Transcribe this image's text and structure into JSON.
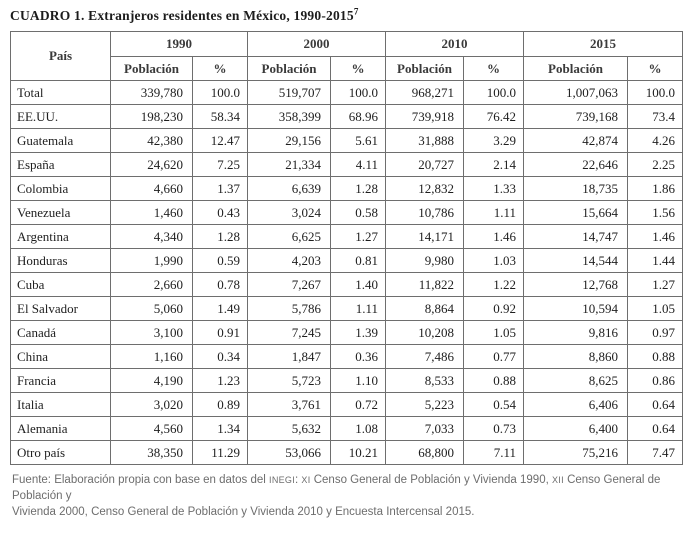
{
  "title": {
    "label": "CUADRO 1.",
    "text": " Extranjeros residentes en México, 1990-2015",
    "footnote_ref": "7"
  },
  "table": {
    "country_header": "País",
    "year_groups": [
      {
        "year": "1990"
      },
      {
        "year": "2000"
      },
      {
        "year": "2010"
      },
      {
        "year": "2015"
      }
    ],
    "sub_headers": {
      "population": "Población",
      "percent": "%"
    },
    "rows": [
      {
        "country": "Total",
        "values": [
          "339,780",
          "100.0",
          "519,707",
          "100.0",
          "968,271",
          "100.0",
          "1,007,063",
          "100.0"
        ]
      },
      {
        "country": "EE.UU.",
        "values": [
          "198,230",
          "58.34",
          "358,399",
          "68.96",
          "739,918",
          "76.42",
          "739,168",
          "73.4"
        ]
      },
      {
        "country": "Guatemala",
        "values": [
          "42,380",
          "12.47",
          "29,156",
          "5.61",
          "31,888",
          "3.29",
          "42,874",
          "4.26"
        ]
      },
      {
        "country": "España",
        "values": [
          "24,620",
          "7.25",
          "21,334",
          "4.11",
          "20,727",
          "2.14",
          "22,646",
          "2.25"
        ]
      },
      {
        "country": "Colombia",
        "values": [
          "4,660",
          "1.37",
          "6,639",
          "1.28",
          "12,832",
          "1.33",
          "18,735",
          "1.86"
        ]
      },
      {
        "country": "Venezuela",
        "values": [
          "1,460",
          "0.43",
          "3,024",
          "0.58",
          "10,786",
          "1.11",
          "15,664",
          "1.56"
        ]
      },
      {
        "country": "Argentina",
        "values": [
          "4,340",
          "1.28",
          "6,625",
          "1.27",
          "14,171",
          "1.46",
          "14,747",
          "1.46"
        ]
      },
      {
        "country": "Honduras",
        "values": [
          "1,990",
          "0.59",
          "4,203",
          "0.81",
          "9,980",
          "1.03",
          "14,544",
          "1.44"
        ]
      },
      {
        "country": "Cuba",
        "values": [
          "2,660",
          "0.78",
          "7,267",
          "1.40",
          "11,822",
          "1.22",
          "12,768",
          "1.27"
        ]
      },
      {
        "country": "El Salvador",
        "values": [
          "5,060",
          "1.49",
          "5,786",
          "1.11",
          "8,864",
          "0.92",
          "10,594",
          "1.05"
        ]
      },
      {
        "country": "Canadá",
        "values": [
          "3,100",
          "0.91",
          "7,245",
          "1.39",
          "10,208",
          "1.05",
          "9,816",
          "0.97"
        ]
      },
      {
        "country": "China",
        "values": [
          "1,160",
          "0.34",
          "1,847",
          "0.36",
          "7,486",
          "0.77",
          "8,860",
          "0.88"
        ]
      },
      {
        "country": "Francia",
        "values": [
          "4,190",
          "1.23",
          "5,723",
          "1.10",
          "8,533",
          "0.88",
          "8,625",
          "0.86"
        ]
      },
      {
        "country": "Italia",
        "values": [
          "3,020",
          "0.89",
          "3,761",
          "0.72",
          "5,223",
          "0.54",
          "6,406",
          "0.64"
        ]
      },
      {
        "country": "Alemania",
        "values": [
          "4,560",
          "1.34",
          "5,632",
          "1.08",
          "7,033",
          "0.73",
          "6,400",
          "0.64"
        ]
      },
      {
        "country": "Otro país",
        "values": [
          "38,350",
          "11.29",
          "53,066",
          "10.21",
          "68,800",
          "7.11",
          "75,216",
          "7.47"
        ]
      }
    ]
  },
  "footer": {
    "line1": [
      "Fuente: Elaboración propia con base en datos del ",
      "INEGI",
      ": ",
      "XI",
      " Censo General de Población y Vivienda 1990, ",
      "XII",
      " Censo General de Población y"
    ],
    "line2": "Vivienda 2000, Censo General de Población y Vivienda 2010 y Encuesta Intercensal 2015."
  },
  "colors": {
    "text": "#1e1e1e",
    "header_text": "#3a3a3a",
    "border": "#6e6e6e",
    "footer_text": "#6d6d6d",
    "background": "#ffffff"
  }
}
